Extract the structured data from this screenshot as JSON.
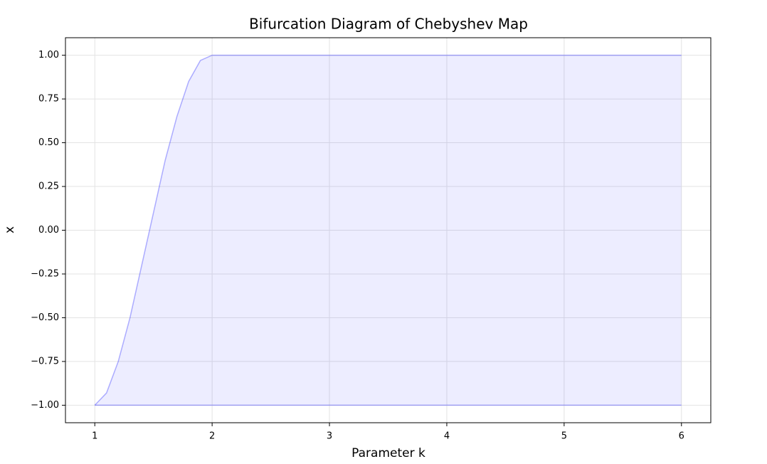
{
  "chart_data": {
    "type": "area",
    "title": "Bifurcation Diagram of Chebyshev Map",
    "x_label": "Parameter k",
    "y_label": "x",
    "x": [
      1,
      1.1,
      1.2,
      1.3,
      1.4,
      1.5,
      1.6,
      1.7,
      1.8,
      1.9,
      2,
      6
    ],
    "series": [
      {
        "color": "#0000ff",
        "values": [
          -1,
          -0.93,
          -0.75,
          -0.5,
          -0.2,
          0.1,
          0.4,
          0.65,
          0.85,
          0.97,
          1,
          1
        ]
      },
      {
        "color": "#0000ff",
        "values": [
          -1,
          -1,
          -1,
          -1,
          -1,
          -1,
          -1,
          -1,
          -1,
          -1,
          -1,
          -1
        ]
      }
    ],
    "xlim": [
      0.75,
      6.25
    ],
    "xticks": [
      1,
      2,
      3,
      4,
      5,
      6
    ],
    "ylim": [
      -1.1,
      1.1
    ],
    "yticks": [
      {
        "value": -1,
        "label": "−1.00"
      },
      {
        "value": -0.75,
        "label": "−0.75"
      },
      {
        "value": -0.5,
        "label": "−0.50"
      },
      {
        "value": -0.25,
        "label": "−0.25"
      },
      {
        "value": 0,
        "label": "0.00"
      },
      {
        "value": 0.25,
        "label": "0.25"
      },
      {
        "value": 0.5,
        "label": "0.50"
      },
      {
        "value": 0.75,
        "label": "0.75"
      },
      {
        "value": 1,
        "label": "1.00"
      }
    ],
    "grid": true
  }
}
